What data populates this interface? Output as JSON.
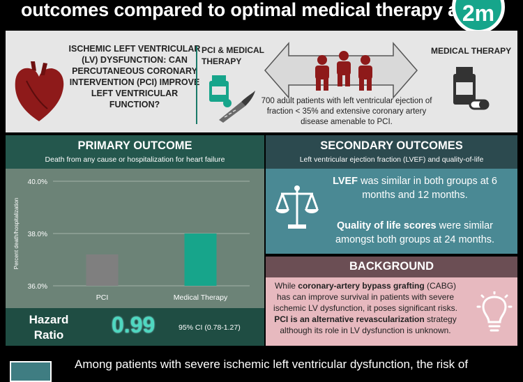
{
  "header": {
    "title": "outcomes compared to optimal medical therapy alone",
    "logo_text": "2m"
  },
  "top_panel": {
    "question": "ISCHEMIC LEFT VENTRICULAR (LV) DYSFUNCTION: CAN PERCUTANEOUS CORONARY INTERVENTION (PCI) IMPROVE LEFT VENTRICULAR FUNCTION?",
    "pci_label": "PCI & MEDICAL THERAPY",
    "med_label": "MEDICAL THERAPY",
    "population": "700 adult patients with left ventricular ejection of fraction < 35% and extensive coronary artery disease amenable to PCI."
  },
  "primary": {
    "title": "PRIMARY OUTCOME",
    "subtitle": "Death from any cause or hospitalization for heart failure",
    "hazard_label": "Hazard Ratio",
    "hazard_value": "0.99",
    "ci": "95% CI (0.78-1.27)"
  },
  "chart_data": {
    "type": "bar",
    "categories": [
      "PCI",
      "Medical Therapy"
    ],
    "values": [
      37.2,
      38.0
    ],
    "ylabel": "Percent death/hospitalization",
    "ylim": [
      36.0,
      40.0
    ],
    "yticks": [
      "36.0%",
      "38.0%",
      "40.0%"
    ],
    "colors": [
      "#7f7f7f",
      "#17a58b"
    ],
    "grid": true
  },
  "secondary": {
    "title": "SECONDARY OUTCOMES",
    "subtitle": "Left ventricular ejection fraction (LVEF) and quality-of-life",
    "p1_bold": "LVEF",
    "p1_rest": " was similar in both groups at 6 months and 12 months.",
    "p2_bold": "Quality of life scores",
    "p2_rest": " were similar amongst both groups at 24 months."
  },
  "background": {
    "title": "BACKGROUND",
    "t1": "While ",
    "t2": "coronary-artery bypass grafting",
    "t3": " (CABG) has can improve survival in patients with severe ischemic LV dysfunction, it poses significant risks. ",
    "t4": "PCI is an alternative revascularization",
    "t5": " strategy although its role in LV dysfunction is unknown."
  },
  "bottom": {
    "text": "Among patients with severe ischemic left ventricular dysfunction, the risk of"
  },
  "icons": [
    "heart-icon",
    "pill-bottle-icon",
    "scalpel-icon",
    "people-icon",
    "double-arrow-icon",
    "scale-icon",
    "lightbulb-icon"
  ]
}
